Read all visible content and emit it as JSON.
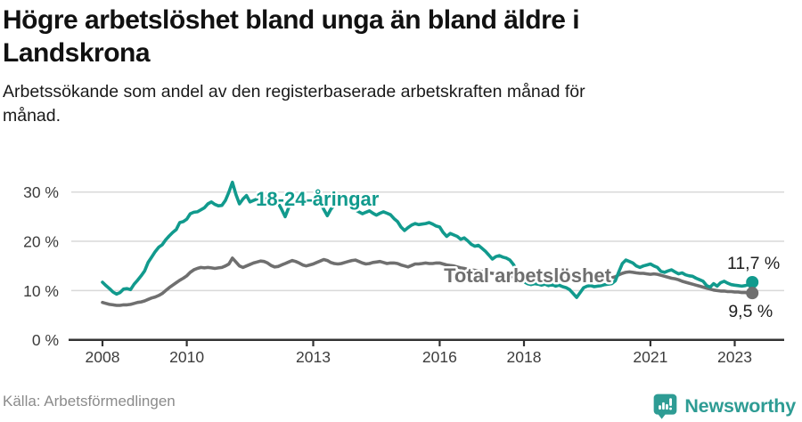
{
  "header": {
    "title_lines": [
      "Högre arbetslöshet bland unga än bland äldre i",
      "Landskrona"
    ],
    "subtitle_lines": [
      "Arbetssökande som andel av den registerbaserade arbetskraften månad för",
      "månad."
    ]
  },
  "footer": {
    "source": "Källa: Arbetsförmedlingen",
    "brand": "Newsworthy",
    "brand_color": "#2e9c94"
  },
  "chart_data": {
    "type": "line",
    "title": "Högre arbetslöshet bland unga än bland äldre i Landskrona",
    "subtitle": "Arbetssökande som andel av den registerbaserade arbetskraften månad för månad.",
    "x_unit": "monthly, decimal years",
    "x_range": [
      2008.0,
      2023.42
    ],
    "ylim": [
      0,
      33
    ],
    "grid": "horizontal",
    "legend_position": "inline-labels",
    "axis_color": "#333333",
    "grid_color": "#d9d9d9",
    "yticks": [
      {
        "value": 0,
        "label": "0 %"
      },
      {
        "value": 10,
        "label": "10 %"
      },
      {
        "value": 20,
        "label": "20 %"
      },
      {
        "value": 30,
        "label": "30 %"
      }
    ],
    "xticks": [
      {
        "year": 2008,
        "label": "2008"
      },
      {
        "year": 2010,
        "label": "2010"
      },
      {
        "year": 2013,
        "label": "2013"
      },
      {
        "year": 2016,
        "label": "2016"
      },
      {
        "year": 2018,
        "label": "2018"
      },
      {
        "year": 2021,
        "label": "2021"
      },
      {
        "year": 2023,
        "label": "2023"
      }
    ],
    "series": [
      {
        "key": "youth",
        "name": "18-24-åringar",
        "color": "#119a8d",
        "end_label": "11,7 %",
        "end_value": 11.7,
        "label_pos": {
          "year": 2011.64,
          "value": 27.2
        },
        "end_label_offset": [
          31,
          -15
        ],
        "start_year": 2008,
        "monthly_values": [
          11.7,
          11.0,
          10.4,
          9.7,
          9.3,
          9.6,
          10.3,
          10.4,
          10.2,
          11.3,
          12.1,
          13.0,
          14.0,
          15.7,
          16.8,
          17.9,
          18.8,
          19.3,
          20.3,
          21.1,
          21.8,
          22.4,
          23.8,
          24.0,
          24.5,
          25.6,
          25.9,
          26.0,
          26.4,
          26.8,
          27.6,
          28.0,
          27.5,
          27.2,
          27.3,
          28.3,
          30.0,
          32.0,
          29.5,
          27.6,
          28.6,
          29.3,
          28.0,
          28.3,
          28.6,
          28.8,
          28.5,
          28.7,
          29.0,
          28.5,
          27.8,
          26.5,
          25.0,
          26.8,
          28.3,
          28.5,
          28.6,
          28.5,
          28.3,
          28.5,
          28.6,
          28.4,
          28.0,
          26.5,
          25.2,
          26.5,
          27.3,
          27.4,
          27.5,
          27.3,
          27.1,
          26.8,
          26.4,
          26.0,
          25.6,
          25.9,
          26.2,
          25.7,
          25.3,
          25.7,
          26.0,
          25.7,
          25.4,
          24.6,
          24.0,
          22.9,
          22.2,
          22.8,
          23.3,
          23.6,
          23.4,
          23.5,
          23.6,
          23.8,
          23.5,
          23.1,
          22.9,
          21.8,
          21.0,
          21.6,
          21.3,
          21.0,
          20.4,
          20.7,
          20.1,
          19.4,
          19.0,
          19.2,
          18.6,
          18.0,
          17.2,
          16.4,
          16.9,
          17.1,
          16.8,
          16.6,
          16.2,
          15.3,
          14.0,
          12.6,
          11.8,
          11.4,
          11.2,
          11.4,
          11.3,
          11.1,
          11.3,
          11.0,
          11.2,
          10.9,
          11.1,
          10.8,
          10.6,
          10.2,
          9.4,
          8.6,
          9.6,
          10.6,
          10.9,
          11.0,
          10.8,
          10.9,
          11.0,
          11.2,
          11.3,
          11.4,
          12.0,
          13.8,
          15.5,
          16.2,
          15.9,
          15.6,
          15.0,
          14.7,
          15.0,
          15.2,
          15.4,
          15.0,
          14.7,
          13.9,
          13.7,
          14.0,
          14.2,
          13.8,
          13.4,
          13.6,
          13.2,
          13.0,
          12.9,
          12.5,
          12.2,
          11.9,
          11.0,
          10.7,
          11.4,
          10.9,
          11.6,
          11.9,
          11.5,
          11.2,
          11.1,
          11.0,
          10.9,
          11.0,
          11.2,
          11.7
        ]
      },
      {
        "key": "total",
        "name": "Total arbetslöshet",
        "color": "#6f6f6f",
        "end_label": "9,5 %",
        "end_value": 9.5,
        "label_pos": {
          "year": 2016.1,
          "value": 11.7
        },
        "end_label_offset": [
          23,
          27
        ],
        "start_year": 2008,
        "monthly_values": [
          7.6,
          7.4,
          7.2,
          7.1,
          7.0,
          7.0,
          7.1,
          7.1,
          7.2,
          7.4,
          7.6,
          7.7,
          7.9,
          8.2,
          8.5,
          8.7,
          9.0,
          9.4,
          10.0,
          10.6,
          11.1,
          11.6,
          12.1,
          12.5,
          13.0,
          13.7,
          14.2,
          14.5,
          14.7,
          14.6,
          14.7,
          14.6,
          14.5,
          14.6,
          14.7,
          15.0,
          15.4,
          16.6,
          15.8,
          15.0,
          14.7,
          15.0,
          15.3,
          15.6,
          15.8,
          16.0,
          15.9,
          15.6,
          15.1,
          14.8,
          14.9,
          15.2,
          15.5,
          15.8,
          16.1,
          15.9,
          15.6,
          15.2,
          15.0,
          15.2,
          15.4,
          15.7,
          16.0,
          16.3,
          16.1,
          15.7,
          15.5,
          15.4,
          15.5,
          15.7,
          15.9,
          16.1,
          16.2,
          15.9,
          15.6,
          15.4,
          15.5,
          15.7,
          15.8,
          15.9,
          15.7,
          15.5,
          15.6,
          15.6,
          15.5,
          15.2,
          15.0,
          14.8,
          15.1,
          15.4,
          15.4,
          15.5,
          15.6,
          15.5,
          15.5,
          15.6,
          15.6,
          15.4,
          15.2,
          15.1,
          15.0,
          14.8,
          14.6,
          14.5,
          14.3,
          14.2,
          14.1,
          14.0,
          13.9,
          13.7,
          13.6,
          13.5,
          13.4,
          13.2,
          13.1,
          13.0,
          12.9,
          12.8,
          12.7,
          12.7,
          12.6,
          12.6,
          12.5,
          12.5,
          12.6,
          12.5,
          12.5,
          12.4,
          12.5,
          12.4,
          12.4,
          12.5,
          12.4,
          12.3,
          12.2,
          12.1,
          12.2,
          12.3,
          12.3,
          12.4,
          12.3,
          12.4,
          12.4,
          12.5,
          12.5,
          12.6,
          12.8,
          13.2,
          13.5,
          13.7,
          13.8,
          13.7,
          13.6,
          13.5,
          13.5,
          13.4,
          13.3,
          13.4,
          13.3,
          13.1,
          12.9,
          12.7,
          12.5,
          12.4,
          12.2,
          11.9,
          11.7,
          11.5,
          11.3,
          11.1,
          10.9,
          10.7,
          10.5,
          10.3,
          10.1,
          10.0,
          9.9,
          9.9,
          9.8,
          9.8,
          9.7,
          9.7,
          9.6,
          9.6,
          9.5,
          9.5
        ]
      }
    ]
  }
}
